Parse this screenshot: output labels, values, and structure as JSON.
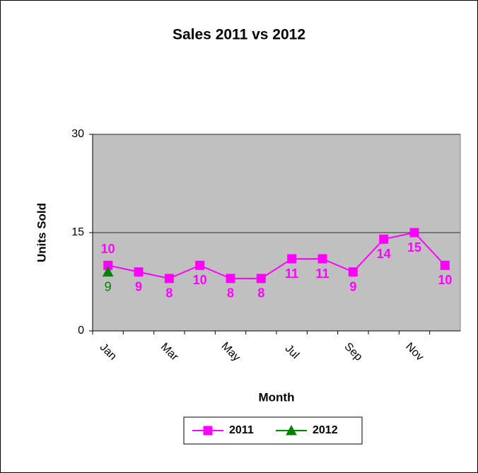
{
  "chart_data": {
    "type": "line",
    "title": "Sales 2011 vs 2012",
    "x_label": "Month",
    "y_label": "Units Sold",
    "categories": [
      "Jan",
      null,
      "Mar",
      null,
      "May",
      null,
      "Jul",
      null,
      "Sep",
      null,
      "Nov",
      null
    ],
    "series": [
      {
        "name": "2011",
        "color": "#ff00ff",
        "marker": "square",
        "values": [
          10,
          9,
          8,
          10,
          8,
          8,
          11,
          11,
          9,
          14,
          15,
          10
        ]
      },
      {
        "name": "2012",
        "color": "#008000",
        "marker": "triangle",
        "values": [
          9,
          null,
          null,
          null,
          null,
          null,
          null,
          null,
          null,
          null,
          null,
          null
        ]
      }
    ],
    "ylim": [
      0,
      30
    ],
    "yticks": [
      0,
      15,
      30
    ],
    "grid": true,
    "legend": "bottom"
  }
}
